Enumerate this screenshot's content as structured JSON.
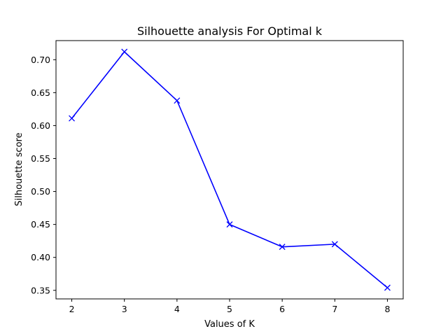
{
  "chart_data": {
    "type": "line",
    "title": "Silhouette analysis For Optimal k",
    "xlabel": "Values of K",
    "ylabel": "Silhouette score",
    "x": [
      2,
      3,
      4,
      5,
      6,
      7,
      8
    ],
    "series": [
      {
        "values": [
          0.611,
          0.712,
          0.638,
          0.45,
          0.416,
          0.42,
          0.354
        ],
        "color": "#0000ff",
        "marker": "x"
      }
    ],
    "xlim": [
      1.7,
      8.3
    ],
    "ylim": [
      0.337,
      0.729
    ],
    "x_ticks": [
      2,
      3,
      4,
      5,
      6,
      7,
      8
    ],
    "x_tick_labels": [
      "2",
      "3",
      "4",
      "5",
      "6",
      "7",
      "8"
    ],
    "y_ticks": [
      0.35,
      0.4,
      0.45,
      0.5,
      0.55,
      0.6,
      0.65,
      0.7
    ],
    "y_tick_labels": [
      "0.35",
      "0.40",
      "0.45",
      "0.50",
      "0.55",
      "0.60",
      "0.65",
      "0.70"
    ],
    "grid": false,
    "legend": "none"
  }
}
